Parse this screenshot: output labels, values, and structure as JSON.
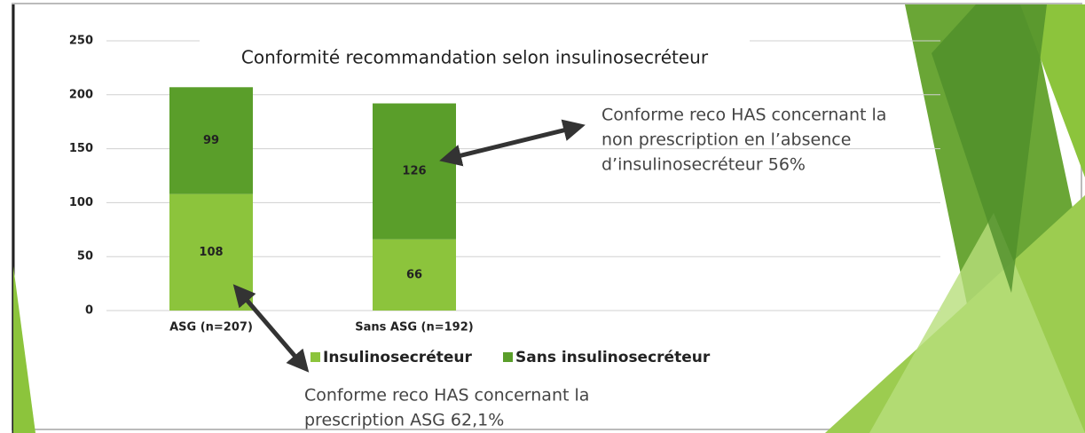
{
  "chart_data": {
    "type": "stacked_bar",
    "title": "Conformité recommandation selon insulinosecréteur",
    "categories": [
      "ASG (n=207)",
      "Sans ASG (n=192)"
    ],
    "series": [
      {
        "name": "Insulinosecréteur",
        "color": "#8cc43c",
        "values": [
          108,
          66
        ]
      },
      {
        "name": "Sans insulinosecréteur",
        "color": "#5a9e2a",
        "values": [
          99,
          126
        ]
      }
    ],
    "ylim": [
      0,
      250
    ],
    "yticks": [
      0,
      50,
      100,
      150,
      200,
      250
    ],
    "grid": true,
    "legend": "bottom",
    "annotations": [
      {
        "lines": [
          "Conforme reco HAS concernant la",
          "non prescription en l’absence",
          "d’insulinosecréteur 56%"
        ]
      },
      {
        "lines": [
          "Conforme reco HAS concernant la",
          "prescription ASG 62,1%"
        ]
      }
    ]
  }
}
